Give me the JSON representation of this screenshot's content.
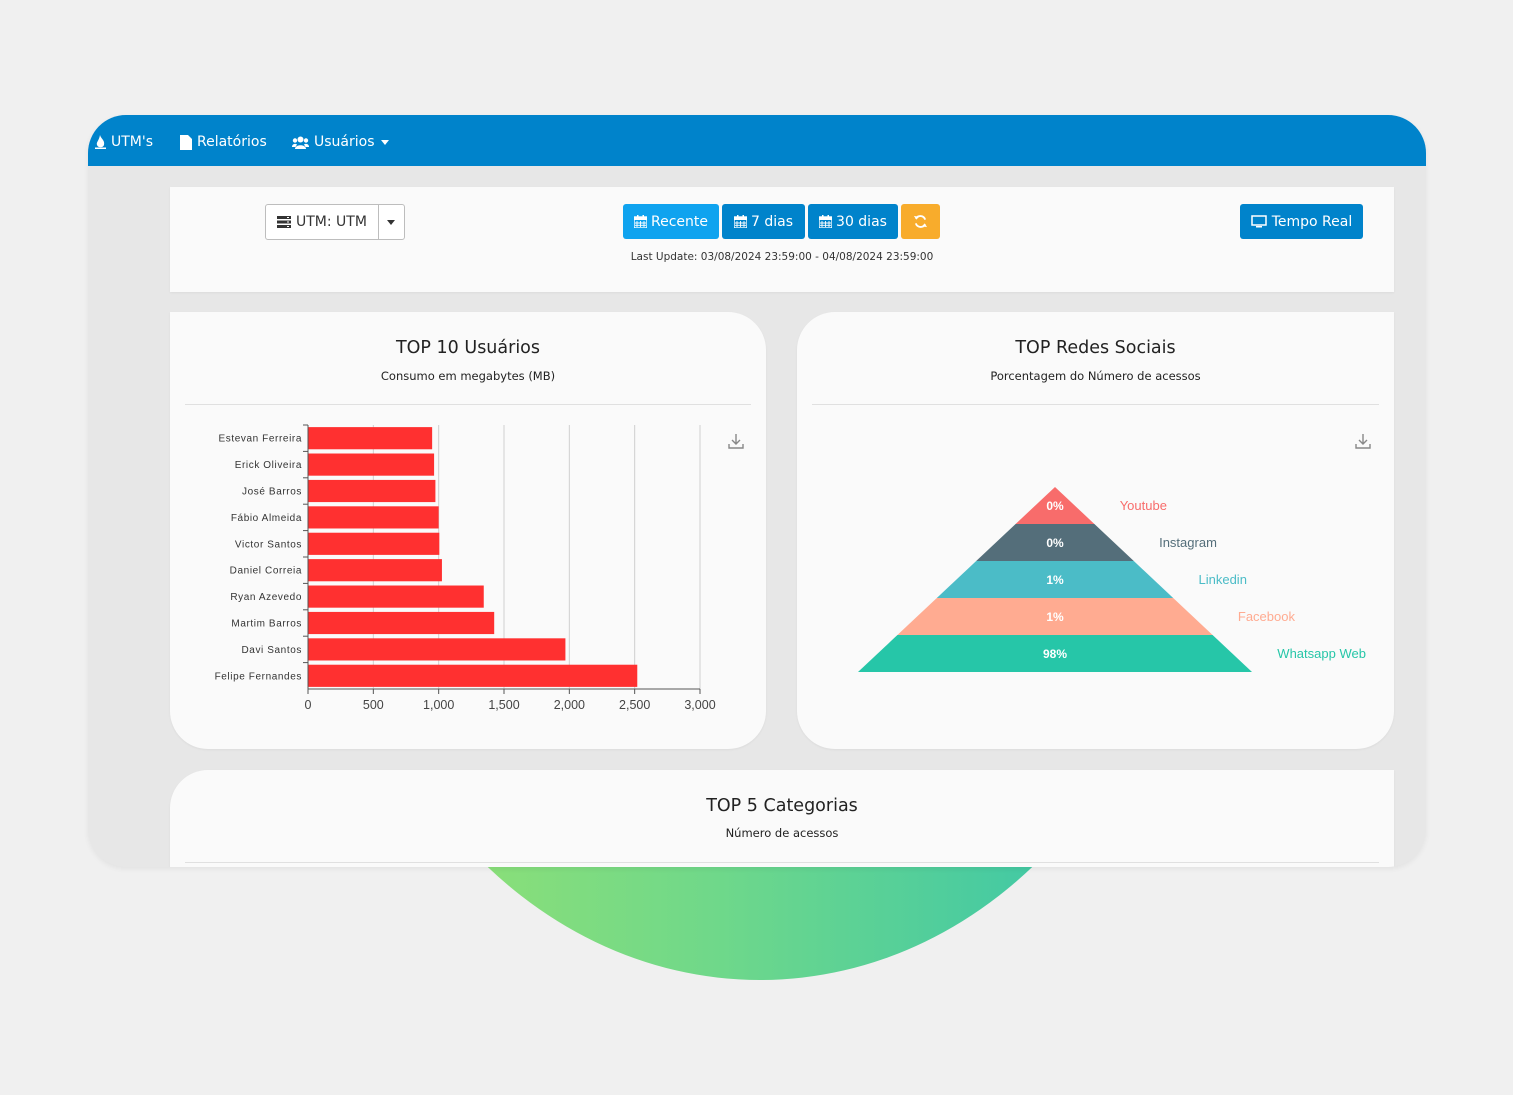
{
  "nav": {
    "items": [
      {
        "label": "UTM's",
        "icon": "fire-icon"
      },
      {
        "label": "Relatórios",
        "icon": "file-icon"
      },
      {
        "label": "Usuários",
        "icon": "users-icon"
      }
    ]
  },
  "toolbar": {
    "utm_select": "UTM: UTM",
    "btn_recente": "Recente",
    "btn_7": "7 dias",
    "btn_30": "30 dias",
    "btn_tempo_real": "Tempo Real",
    "last_update": "Last Update: 03/08/2024 23:59:00 - 04/08/2024 23:59:00"
  },
  "colors": {
    "nav": "#0083cb",
    "accent_light": "#0fa3ef",
    "refresh": "#f8ac2c",
    "bar": "#ff3030"
  },
  "cards": {
    "users": {
      "title": "TOP 10 Usuários",
      "subtitle": "Consumo em megabytes (MB)"
    },
    "social": {
      "title": "TOP Redes Sociais",
      "subtitle": "Porcentagem do Número de acessos"
    },
    "categories": {
      "title": "TOP 5 Categorias",
      "subtitle": "Número de acessos"
    }
  },
  "chart_data": [
    {
      "type": "bar",
      "orientation": "horizontal",
      "categories": [
        "Estevan Ferreira",
        "Erick Oliveira",
        "José Barros",
        "Fábio Almeida",
        "Victor Santos",
        "Daniel Correia",
        "Ryan Azevedo",
        "Martim Barros",
        "Davi Santos",
        "Felipe Fernandes"
      ],
      "values": [
        950,
        965,
        975,
        1000,
        1005,
        1025,
        1345,
        1425,
        1970,
        2520
      ],
      "xlim": [
        0,
        3000
      ],
      "xticks": [
        0,
        500,
        1000,
        1500,
        2000,
        2500,
        3000
      ],
      "xtick_labels": [
        "0",
        "500",
        "1,000",
        "1,500",
        "2,000",
        "2,500",
        "3,000"
      ],
      "grid": true,
      "color": "#ff3030"
    },
    {
      "type": "pyramid",
      "series": [
        {
          "name": "Youtube",
          "label": "0%",
          "color": "#f86c6b"
        },
        {
          "name": "Instagram",
          "label": "0%",
          "color": "#546e7a"
        },
        {
          "name": "Linkedin",
          "label": "1%",
          "color": "#4bbcc7"
        },
        {
          "name": "Facebook",
          "label": "1%",
          "color": "#ffab91"
        },
        {
          "name": "Whatsapp Web",
          "label": "98%",
          "color": "#26c6a8"
        }
      ]
    }
  ]
}
